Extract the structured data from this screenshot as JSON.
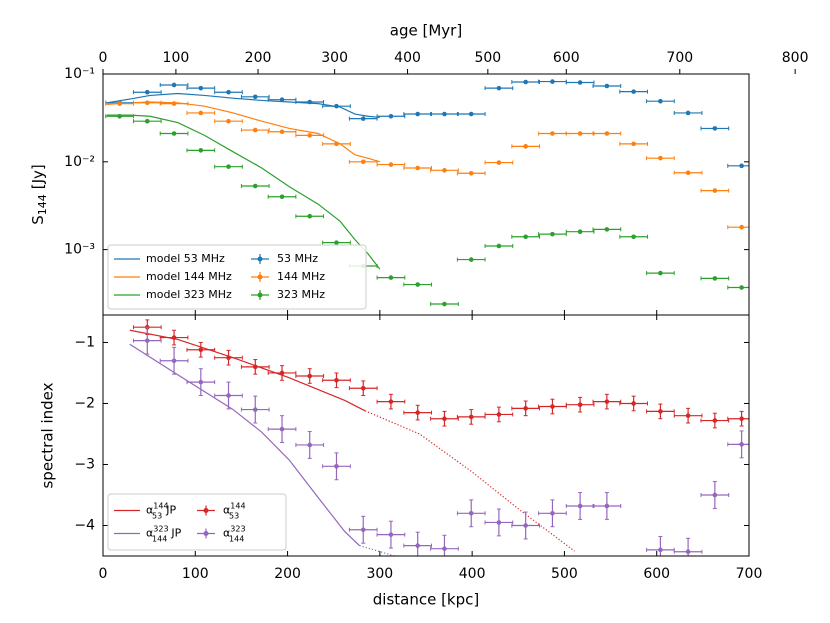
{
  "chart_data": [
    {
      "type": "scatter",
      "log_y": true,
      "ylabel": {
        "main": "S",
        "sub": "144",
        "unit": "[Jy]"
      },
      "x2label": "age [Myr]",
      "x2ticks": [
        0,
        100,
        200,
        300,
        400,
        500,
        600,
        700,
        800
      ],
      "x2ticks_distance": [
        0,
        79,
        168,
        251,
        330,
        417,
        502,
        625,
        750
      ],
      "xlim": [
        0,
        700
      ],
      "xticks": [
        0,
        100,
        200,
        300,
        400,
        500,
        600,
        700
      ],
      "ylim": [
        0.00018,
        0.1
      ],
      "yticks": [
        {
          "value": 0.1,
          "label": "10⁻¹"
        },
        {
          "value": 0.01,
          "label": "10⁻²"
        },
        {
          "value": 0.001,
          "label": "10⁻³"
        }
      ],
      "legend": "lower left",
      "x": [
        18,
        48,
        77,
        106,
        136,
        165,
        194,
        224,
        253,
        282,
        312,
        341,
        370,
        399,
        429,
        458,
        487,
        517,
        546,
        575,
        604,
        634,
        663,
        692
      ],
      "xerr": 15,
      "models": [
        {
          "name": "model 53 MHz",
          "color": "#1f77b4",
          "x": [
            4,
            30,
            51,
            81,
            110,
            141,
            172,
            202,
            233,
            257,
            273,
            287,
            300
          ],
          "values": [
            0.047,
            0.052,
            0.057,
            0.06,
            0.057,
            0.053,
            0.05,
            0.048,
            0.046,
            0.042,
            0.035,
            0.033,
            0.032
          ]
        },
        {
          "name": "model 144 MHz",
          "color": "#ff7f0e",
          "x": [
            4,
            30,
            51,
            81,
            110,
            141,
            172,
            202,
            233,
            257,
            273,
            287,
            300
          ],
          "values": [
            0.045,
            0.047,
            0.048,
            0.047,
            0.043,
            0.036,
            0.029,
            0.024,
            0.021,
            0.016,
            0.012,
            0.011,
            0.01
          ]
        },
        {
          "name": "model 323 MHz",
          "color": "#2ca02c",
          "x": [
            4,
            30,
            51,
            81,
            110,
            141,
            172,
            202,
            233,
            257,
            273,
            287,
            300
          ],
          "values": [
            0.034,
            0.034,
            0.033,
            0.028,
            0.02,
            0.013,
            0.0085,
            0.0052,
            0.0033,
            0.0021,
            0.0013,
            0.0009,
            0.0006
          ]
        }
      ],
      "series": [
        {
          "name": "53 MHz",
          "color": "#1f77b4",
          "values": [
            0.047,
            0.062,
            0.075,
            0.069,
            0.062,
            0.055,
            0.051,
            0.048,
            0.043,
            0.031,
            0.033,
            0.035,
            0.035,
            0.035,
            0.069,
            0.081,
            0.082,
            0.08,
            0.073,
            0.063,
            0.049,
            0.036,
            0.024,
            0.009
          ]
        },
        {
          "name": "144 MHz",
          "color": "#ff7f0e",
          "values": [
            0.046,
            0.047,
            0.046,
            0.036,
            0.029,
            0.023,
            0.022,
            0.02,
            0.016,
            0.01,
            0.0093,
            0.0085,
            0.008,
            0.0074,
            0.0098,
            0.015,
            0.021,
            0.021,
            0.021,
            0.016,
            0.011,
            0.0075,
            0.0047,
            0.0018
          ]
        },
        {
          "name": "323 MHz",
          "color": "#2ca02c",
          "values": [
            0.033,
            0.029,
            0.021,
            0.0135,
            0.0088,
            0.0053,
            0.004,
            0.0024,
            0.0012,
            0.00065,
            0.00048,
            0.0004,
            0.00024,
            0.00077,
            0.0011,
            0.0014,
            0.0015,
            0.0016,
            0.0017,
            0.0014,
            0.00054,
            null,
            0.00047,
            0.00037
          ]
        }
      ]
    },
    {
      "type": "scatter",
      "ylabel": "spectral index",
      "xlabel": "distance [kpc]",
      "xlim": [
        0,
        700
      ],
      "xticks": [
        0,
        100,
        200,
        300,
        400,
        500,
        600,
        700
      ],
      "ylim": [
        -4.5,
        -0.55
      ],
      "yticks": [
        {
          "value": -1,
          "label": "−1"
        },
        {
          "value": -2,
          "label": "−2"
        },
        {
          "value": -3,
          "label": "−3"
        },
        {
          "value": -4,
          "label": "−4"
        }
      ],
      "legend": "lower left",
      "x": [
        48,
        77,
        106,
        136,
        165,
        194,
        224,
        253,
        282,
        312,
        341,
        370,
        399,
        429,
        458,
        487,
        517,
        546,
        575,
        604,
        634,
        663,
        692
      ],
      "xerr": 15,
      "models": [
        {
          "name": "α",
          "sub": "53",
          "sup": "144",
          "suffix": "JP",
          "color": "#d62728",
          "dotted_from": 284,
          "x": [
            29,
            81,
            141,
            202,
            262,
            284,
            343,
            398,
            452,
            511
          ],
          "values": [
            -0.8,
            -0.95,
            -1.25,
            -1.58,
            -1.95,
            -2.12,
            -2.5,
            -3.1,
            -3.75,
            -4.42
          ]
        },
        {
          "name": "α",
          "sub": "144",
          "sup": "323",
          "suffix": "JP",
          "color": "#9467bd",
          "dotted_from": 278,
          "x": [
            29,
            81,
            141,
            172,
            202,
            233,
            262,
            278,
            316
          ],
          "values": [
            -1.03,
            -1.53,
            -2.1,
            -2.47,
            -2.93,
            -3.54,
            -4.1,
            -4.33,
            -4.5
          ]
        }
      ],
      "series": [
        {
          "name": "α",
          "sub": "53",
          "sup": "144",
          "color": "#d62728",
          "yerr": 0.12,
          "values": [
            -0.75,
            -0.92,
            -1.12,
            -1.25,
            -1.4,
            -1.5,
            -1.55,
            -1.62,
            -1.75,
            -1.97,
            -2.15,
            -2.25,
            -2.22,
            -2.18,
            -2.08,
            -2.05,
            -2.02,
            -1.97,
            -2.0,
            -2.13,
            -2.2,
            -2.28,
            -2.25
          ]
        },
        {
          "name": "α",
          "sub": "144",
          "sup": "323",
          "color": "#9467bd",
          "yerr": 0.22,
          "values": [
            -0.97,
            -1.3,
            -1.65,
            -1.87,
            -2.1,
            -2.42,
            -2.68,
            -3.03,
            -4.07,
            -4.15,
            -4.33,
            -4.38,
            -3.8,
            -3.95,
            -4.0,
            -3.8,
            -3.68,
            -3.68,
            null,
            -4.4,
            -4.43,
            -3.5,
            -2.67
          ]
        }
      ]
    }
  ]
}
